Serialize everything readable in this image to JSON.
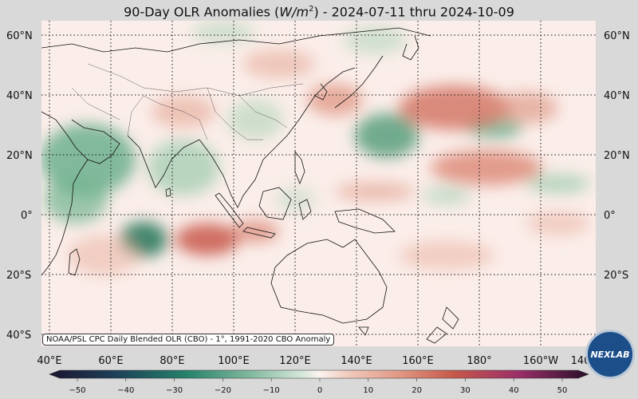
{
  "title": {
    "prefix": "90-Day OLR Anomalies (",
    "unit_base": "W/m",
    "unit_exp": "2",
    "suffix": ") - 2024-07-11 thru 2024-10-09"
  },
  "lat_labels": [
    "60°N",
    "40°N",
    "20°N",
    "0°",
    "20°S",
    "40°S"
  ],
  "lon_labels": [
    "40°E",
    "60°E",
    "80°E",
    "100°E",
    "120°E",
    "140°E",
    "160°E",
    "180°",
    "160°W",
    "140"
  ],
  "colorbar": {
    "ticks": [
      "−50",
      "−40",
      "−30",
      "−20",
      "−10",
      "0",
      "10",
      "20",
      "30",
      "40",
      "50"
    ],
    "range": [
      -50,
      50
    ]
  },
  "attribution": "NOAA/PSL CPC Daily Blended OLR (CBO) - 1°, 1991-2020 CBO Anomaly",
  "logo_text": "NEXLAB",
  "colors": {
    "negative": "#2b7a5e",
    "positive": "#c8584a",
    "neutral": "#fbeeea"
  }
}
